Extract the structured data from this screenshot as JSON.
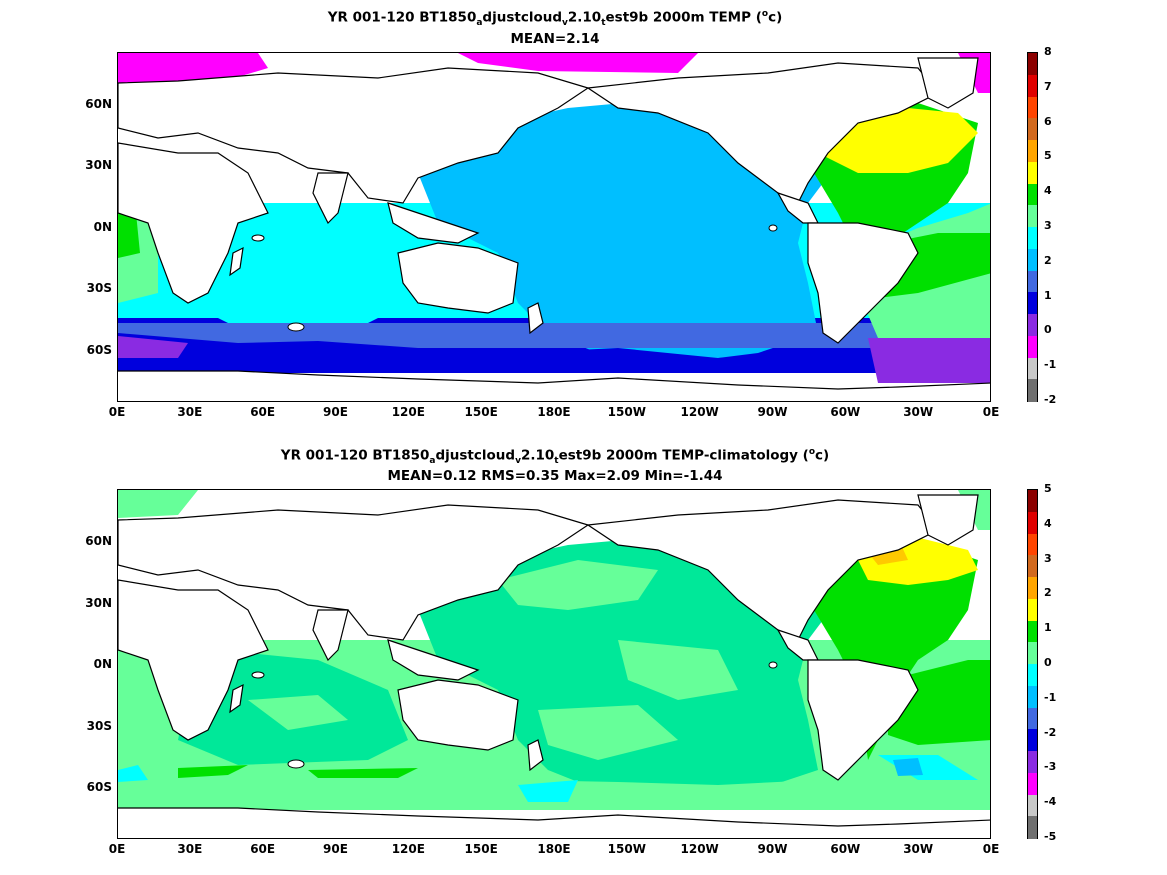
{
  "panels": [
    {
      "title_parts": {
        "a": "YR 001-120 BT1850",
        "s1": "a",
        "b": "djustcloud",
        "s2": "v",
        "c": "2.10",
        "s3": "t",
        "d": "est9b 2000m TEMP (",
        "sup": "o",
        "e": "c)"
      },
      "subtitle": "MEAN=2.14",
      "lat_labels": [
        "60N",
        "30N",
        "0N",
        "30S",
        "60S"
      ],
      "lon_labels": [
        "0E",
        "30E",
        "60E",
        "90E",
        "120E",
        "150E",
        "180E",
        "150W",
        "120W",
        "90W",
        "60W",
        "30W",
        "0E"
      ],
      "colorbar": {
        "labels": [
          "8",
          "7",
          "6",
          "5",
          "4",
          "3",
          "2",
          "1",
          "0",
          "-1",
          "-2"
        ],
        "colors": [
          "#8b0000",
          "#e00000",
          "#ff4500",
          "#d2691e",
          "#ffa500",
          "#ffff00",
          "#00e000",
          "#66ff99",
          "#00ffff",
          "#00bfff",
          "#4169e1",
          "#0000dd",
          "#8a2be2",
          "#ff00ff",
          "#c8c8c8",
          "#707070"
        ]
      }
    },
    {
      "title_parts": {
        "a": "YR 001-120 BT1850",
        "s1": "a",
        "b": "djustcloud",
        "s2": "v",
        "c": "2.10",
        "s3": "t",
        "d": "est9b 2000m TEMP-climatology (",
        "sup": "o",
        "e": "c)"
      },
      "subtitle": "MEAN=0.12   RMS=0.35   Max=2.09   Min=-1.44",
      "lat_labels": [
        "60N",
        "30N",
        "0N",
        "30S",
        "60S"
      ],
      "lon_labels": [
        "0E",
        "30E",
        "60E",
        "90E",
        "120E",
        "150E",
        "180E",
        "150W",
        "120W",
        "90W",
        "60W",
        "30W",
        "0E"
      ],
      "colorbar": {
        "labels": [
          "5",
          "4",
          "3",
          "2",
          "1",
          "0",
          "-1",
          "-2",
          "-3",
          "-4",
          "-5"
        ],
        "colors": [
          "#8b0000",
          "#e00000",
          "#ff4500",
          "#d2691e",
          "#ffa500",
          "#ffff00",
          "#00e000",
          "#66ff99",
          "#00ffff",
          "#00bfff",
          "#4169e1",
          "#0000dd",
          "#8a2be2",
          "#ff00ff",
          "#c8c8c8",
          "#707070"
        ]
      }
    }
  ]
}
